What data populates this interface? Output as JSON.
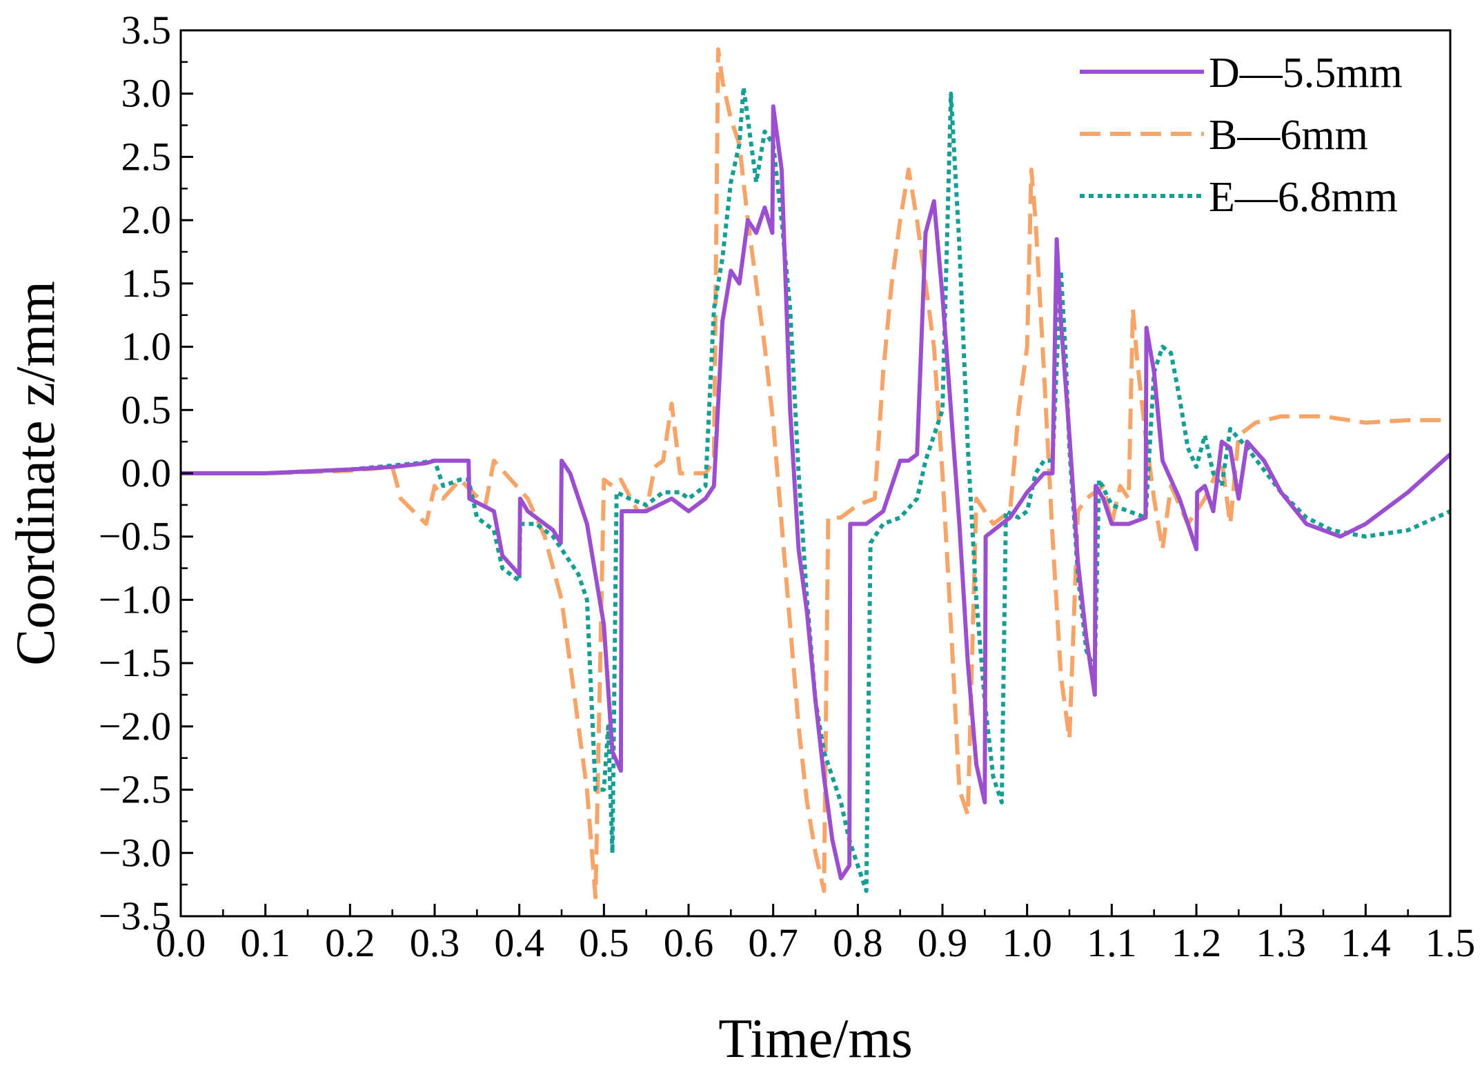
{
  "chart_data": {
    "type": "line",
    "xlabel": "Time/ms",
    "ylabel": "Coordinate z/mm",
    "xlim": [
      0,
      1.5
    ],
    "ylim": [
      -3.5,
      3.5
    ],
    "x_ticks": [
      "0.0",
      "0.1",
      "0.2",
      "0.3",
      "0.4",
      "0.5",
      "0.6",
      "0.7",
      "0.8",
      "0.9",
      "1.0",
      "1.1",
      "1.2",
      "1.3",
      "1.4",
      "1.5"
    ],
    "y_ticks": [
      "−3.5",
      "−3.0",
      "−2.5",
      "−2.0",
      "−1.5",
      "−1.0",
      "−0.5",
      "0.0",
      "0.5",
      "1.0",
      "1.5",
      "2.0",
      "2.5",
      "3.0",
      "3.5"
    ],
    "grid": false,
    "legend_position": "top-right",
    "series": [
      {
        "name": "D—5.5mm",
        "color": "#9b4fd0",
        "style": "solid",
        "points": [
          [
            0,
            0
          ],
          [
            0.1,
            0
          ],
          [
            0.2,
            0.03
          ],
          [
            0.25,
            0.05
          ],
          [
            0.29,
            0.08
          ],
          [
            0.3,
            0.1
          ],
          [
            0.34,
            0.1
          ],
          [
            0.341,
            -0.2
          ],
          [
            0.37,
            -0.3
          ],
          [
            0.38,
            -0.65
          ],
          [
            0.4,
            -0.8
          ],
          [
            0.401,
            -0.2
          ],
          [
            0.41,
            -0.3
          ],
          [
            0.44,
            -0.45
          ],
          [
            0.449,
            -0.55
          ],
          [
            0.45,
            0.1
          ],
          [
            0.46,
            0
          ],
          [
            0.48,
            -0.4
          ],
          [
            0.5,
            -1.2
          ],
          [
            0.51,
            -2.2
          ],
          [
            0.52,
            -2.35
          ],
          [
            0.521,
            -0.3
          ],
          [
            0.55,
            -0.3
          ],
          [
            0.58,
            -0.2
          ],
          [
            0.6,
            -0.3
          ],
          [
            0.62,
            -0.2
          ],
          [
            0.63,
            -0.1
          ],
          [
            0.64,
            1.2
          ],
          [
            0.65,
            1.6
          ],
          [
            0.66,
            1.5
          ],
          [
            0.67,
            2.0
          ],
          [
            0.68,
            1.9
          ],
          [
            0.69,
            2.1
          ],
          [
            0.699,
            1.9
          ],
          [
            0.7,
            2.9
          ],
          [
            0.71,
            2.4
          ],
          [
            0.72,
            0.5
          ],
          [
            0.73,
            -0.6
          ],
          [
            0.74,
            -1.1
          ],
          [
            0.75,
            -1.8
          ],
          [
            0.76,
            -2.4
          ],
          [
            0.77,
            -2.9
          ],
          [
            0.78,
            -3.2
          ],
          [
            0.79,
            -3.1
          ],
          [
            0.791,
            -0.4
          ],
          [
            0.81,
            -0.4
          ],
          [
            0.83,
            -0.3
          ],
          [
            0.84,
            -0.1
          ],
          [
            0.85,
            0.1
          ],
          [
            0.86,
            0.1
          ],
          [
            0.87,
            0.15
          ],
          [
            0.88,
            1.9
          ],
          [
            0.89,
            2.15
          ],
          [
            0.9,
            1.4
          ],
          [
            0.91,
            0.5
          ],
          [
            0.92,
            -0.4
          ],
          [
            0.93,
            -1.5
          ],
          [
            0.94,
            -2.3
          ],
          [
            0.95,
            -2.6
          ],
          [
            0.951,
            -0.5
          ],
          [
            0.97,
            -0.4
          ],
          [
            0.98,
            -0.35
          ],
          [
            1.0,
            -0.15
          ],
          [
            1.02,
            0
          ],
          [
            1.03,
            0
          ],
          [
            1.035,
            1.85
          ],
          [
            1.04,
            1.2
          ],
          [
            1.05,
            0.3
          ],
          [
            1.06,
            -0.7
          ],
          [
            1.07,
            -1.3
          ],
          [
            1.08,
            -1.75
          ],
          [
            1.081,
            -0.1
          ],
          [
            1.09,
            -0.2
          ],
          [
            1.1,
            -0.4
          ],
          [
            1.12,
            -0.4
          ],
          [
            1.14,
            -0.35
          ],
          [
            1.141,
            1.15
          ],
          [
            1.15,
            0.8
          ],
          [
            1.16,
            0.1
          ],
          [
            1.18,
            -0.2
          ],
          [
            1.2,
            -0.6
          ],
          [
            1.201,
            -0.15
          ],
          [
            1.21,
            -0.1
          ],
          [
            1.22,
            -0.3
          ],
          [
            1.23,
            0.25
          ],
          [
            1.24,
            0.2
          ],
          [
            1.25,
            -0.2
          ],
          [
            1.26,
            0.25
          ],
          [
            1.28,
            0.1
          ],
          [
            1.3,
            -0.15
          ],
          [
            1.33,
            -0.4
          ],
          [
            1.37,
            -0.5
          ],
          [
            1.4,
            -0.4
          ],
          [
            1.45,
            -0.15
          ],
          [
            1.5,
            0.15
          ]
        ]
      },
      {
        "name": "B—6mm",
        "color": "#f7a468",
        "style": "dashed",
        "points": [
          [
            0,
            0
          ],
          [
            0.1,
            0
          ],
          [
            0.2,
            0.02
          ],
          [
            0.25,
            0.05
          ],
          [
            0.26,
            -0.2
          ],
          [
            0.29,
            -0.4
          ],
          [
            0.3,
            -0.1
          ],
          [
            0.31,
            -0.2
          ],
          [
            0.33,
            -0.05
          ],
          [
            0.36,
            -0.25
          ],
          [
            0.37,
            0.1
          ],
          [
            0.39,
            -0.05
          ],
          [
            0.41,
            -0.2
          ],
          [
            0.43,
            -0.5
          ],
          [
            0.45,
            -1.0
          ],
          [
            0.47,
            -2.0
          ],
          [
            0.48,
            -2.5
          ],
          [
            0.49,
            -3.35
          ],
          [
            0.5,
            -0.05
          ],
          [
            0.51,
            -0.1
          ],
          [
            0.52,
            -0.05
          ],
          [
            0.54,
            -0.3
          ],
          [
            0.55,
            -0.3
          ],
          [
            0.56,
            0.05
          ],
          [
            0.57,
            0.1
          ],
          [
            0.58,
            0.55
          ],
          [
            0.59,
            0
          ],
          [
            0.62,
            0
          ],
          [
            0.63,
            0.1
          ],
          [
            0.635,
            3.35
          ],
          [
            0.64,
            3.1
          ],
          [
            0.65,
            2.8
          ],
          [
            0.66,
            2.6
          ],
          [
            0.67,
            2.0
          ],
          [
            0.68,
            1.5
          ],
          [
            0.69,
            1.0
          ],
          [
            0.7,
            0.4
          ],
          [
            0.71,
            -0.4
          ],
          [
            0.72,
            -1.2
          ],
          [
            0.73,
            -2.0
          ],
          [
            0.74,
            -2.6
          ],
          [
            0.75,
            -3.0
          ],
          [
            0.76,
            -3.3
          ],
          [
            0.765,
            -0.35
          ],
          [
            0.78,
            -0.35
          ],
          [
            0.8,
            -0.25
          ],
          [
            0.82,
            -0.2
          ],
          [
            0.83,
            0.8
          ],
          [
            0.84,
            1.5
          ],
          [
            0.85,
            2.0
          ],
          [
            0.86,
            2.4
          ],
          [
            0.87,
            2.0
          ],
          [
            0.88,
            1.5
          ],
          [
            0.89,
            1.0
          ],
          [
            0.9,
            0
          ],
          [
            0.91,
            -1.2
          ],
          [
            0.92,
            -2.5
          ],
          [
            0.93,
            -2.7
          ],
          [
            0.94,
            -0.2
          ],
          [
            0.96,
            -0.4
          ],
          [
            0.98,
            -0.3
          ],
          [
            0.99,
            0.5
          ],
          [
            1.0,
            1.0
          ],
          [
            1.005,
            2.4
          ],
          [
            1.01,
            2.0
          ],
          [
            1.02,
            0.8
          ],
          [
            1.03,
            -0.5
          ],
          [
            1.04,
            -1.6
          ],
          [
            1.05,
            -2.1
          ],
          [
            1.06,
            -0.3
          ],
          [
            1.07,
            -0.2
          ],
          [
            1.09,
            -0.1
          ],
          [
            1.1,
            -0.4
          ],
          [
            1.11,
            -0.1
          ],
          [
            1.12,
            -0.2
          ],
          [
            1.125,
            1.3
          ],
          [
            1.13,
            0.9
          ],
          [
            1.14,
            0.3
          ],
          [
            1.15,
            -0.2
          ],
          [
            1.16,
            -0.6
          ],
          [
            1.17,
            -0.1
          ],
          [
            1.19,
            -0.4
          ],
          [
            1.21,
            -0.2
          ],
          [
            1.23,
            0.1
          ],
          [
            1.24,
            -0.4
          ],
          [
            1.25,
            0.3
          ],
          [
            1.27,
            0.4
          ],
          [
            1.3,
            0.45
          ],
          [
            1.35,
            0.45
          ],
          [
            1.4,
            0.4
          ],
          [
            1.45,
            0.42
          ],
          [
            1.5,
            0.42
          ]
        ]
      },
      {
        "name": "E—6.8mm",
        "color": "#149e94",
        "style": "dotted",
        "points": [
          [
            0,
            0
          ],
          [
            0.1,
            0
          ],
          [
            0.2,
            0.03
          ],
          [
            0.28,
            0.08
          ],
          [
            0.3,
            0.1
          ],
          [
            0.31,
            -0.1
          ],
          [
            0.33,
            -0.05
          ],
          [
            0.34,
            -0.05
          ],
          [
            0.35,
            -0.35
          ],
          [
            0.37,
            -0.45
          ],
          [
            0.38,
            -0.75
          ],
          [
            0.4,
            -0.85
          ],
          [
            0.401,
            -0.4
          ],
          [
            0.42,
            -0.4
          ],
          [
            0.44,
            -0.5
          ],
          [
            0.46,
            -0.7
          ],
          [
            0.47,
            -0.8
          ],
          [
            0.48,
            -1.0
          ],
          [
            0.49,
            -2.5
          ],
          [
            0.5,
            -2.5
          ],
          [
            0.505,
            -2.0
          ],
          [
            0.51,
            -3.0
          ],
          [
            0.515,
            -0.15
          ],
          [
            0.53,
            -0.2
          ],
          [
            0.55,
            -0.25
          ],
          [
            0.57,
            -0.15
          ],
          [
            0.59,
            -0.15
          ],
          [
            0.6,
            -0.2
          ],
          [
            0.61,
            -0.15
          ],
          [
            0.62,
            -0.1
          ],
          [
            0.63,
            1.3
          ],
          [
            0.64,
            1.7
          ],
          [
            0.65,
            2.3
          ],
          [
            0.66,
            2.6
          ],
          [
            0.665,
            3.05
          ],
          [
            0.67,
            2.8
          ],
          [
            0.68,
            2.3
          ],
          [
            0.69,
            2.7
          ],
          [
            0.7,
            2.6
          ],
          [
            0.71,
            2.0
          ],
          [
            0.72,
            1.3
          ],
          [
            0.73,
            0
          ],
          [
            0.74,
            -1.0
          ],
          [
            0.75,
            -1.8
          ],
          [
            0.76,
            -2.2
          ],
          [
            0.77,
            -2.4
          ],
          [
            0.78,
            -2.6
          ],
          [
            0.79,
            -2.9
          ],
          [
            0.8,
            -3.1
          ],
          [
            0.81,
            -3.3
          ],
          [
            0.815,
            -0.55
          ],
          [
            0.83,
            -0.4
          ],
          [
            0.85,
            -0.35
          ],
          [
            0.87,
            -0.2
          ],
          [
            0.88,
            0.1
          ],
          [
            0.89,
            0.3
          ],
          [
            0.9,
            0.5
          ],
          [
            0.91,
            3.0
          ],
          [
            0.92,
            1.8
          ],
          [
            0.93,
            0.2
          ],
          [
            0.94,
            -1.0
          ],
          [
            0.95,
            -1.8
          ],
          [
            0.96,
            -2.4
          ],
          [
            0.97,
            -2.6
          ],
          [
            0.975,
            -0.3
          ],
          [
            0.99,
            -0.35
          ],
          [
            1.0,
            -0.3
          ],
          [
            1.01,
            0
          ],
          [
            1.02,
            0.1
          ],
          [
            1.03,
            0.1
          ],
          [
            1.04,
            1.6
          ],
          [
            1.045,
            1.0
          ],
          [
            1.05,
            0.2
          ],
          [
            1.06,
            -0.8
          ],
          [
            1.07,
            -1.4
          ],
          [
            1.08,
            -1.55
          ],
          [
            1.085,
            -0.05
          ],
          [
            1.1,
            -0.25
          ],
          [
            1.12,
            -0.3
          ],
          [
            1.14,
            -0.35
          ],
          [
            1.15,
            0.8
          ],
          [
            1.16,
            1.0
          ],
          [
            1.17,
            0.95
          ],
          [
            1.18,
            0.6
          ],
          [
            1.19,
            0.2
          ],
          [
            1.2,
            0.05
          ],
          [
            1.21,
            0.3
          ],
          [
            1.22,
            0
          ],
          [
            1.23,
            -0.1
          ],
          [
            1.24,
            0.35
          ],
          [
            1.26,
            0.2
          ],
          [
            1.3,
            -0.15
          ],
          [
            1.33,
            -0.35
          ],
          [
            1.36,
            -0.45
          ],
          [
            1.4,
            -0.5
          ],
          [
            1.45,
            -0.45
          ],
          [
            1.5,
            -0.3
          ]
        ]
      }
    ]
  }
}
